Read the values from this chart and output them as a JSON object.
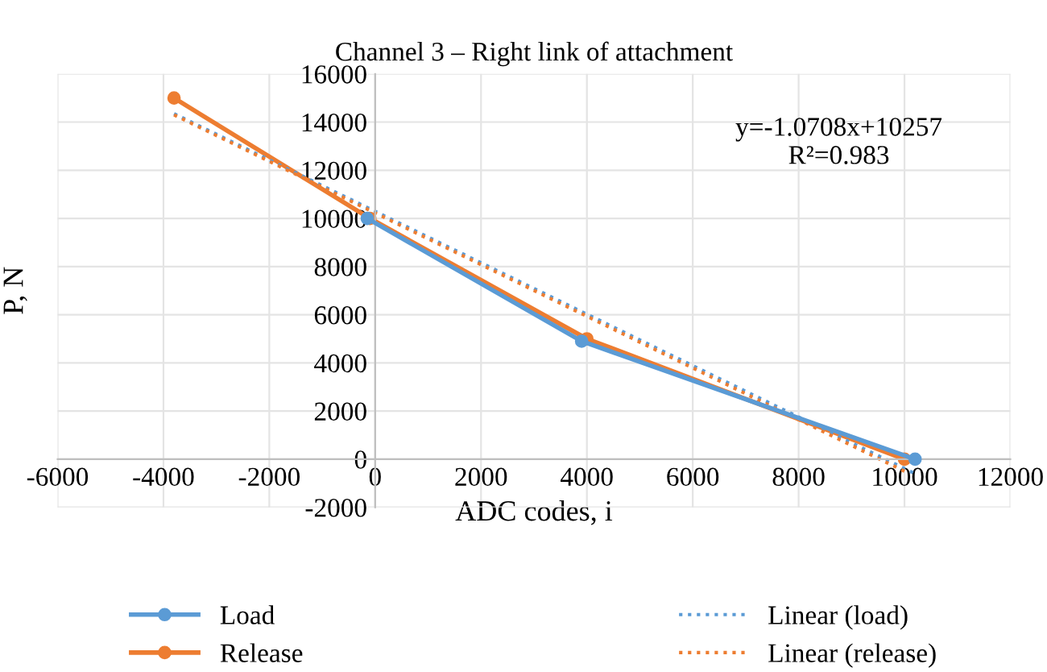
{
  "chart_data": {
    "type": "line",
    "title": "Channel 3 – Right link of attachment",
    "xlabel": "ADC codes, i",
    "ylabel": "P, N",
    "series": [
      {
        "name": "Load",
        "color": "#5b9bd5",
        "x": [
          -150,
          3900,
          10200
        ],
        "values": [
          10000,
          4900,
          0
        ],
        "marker": "circle",
        "line_style": "solid"
      },
      {
        "name": "Release",
        "color": "#ed7d31",
        "x": [
          -3800,
          -100,
          4000,
          10000
        ],
        "values": [
          15000,
          10000,
          5000,
          0
        ],
        "marker": "circle",
        "line_style": "solid"
      },
      {
        "name": "Linear (load)",
        "color": "#5b9bd5",
        "x": [
          -3800,
          10200
        ],
        "values": [
          14350,
          -600
        ],
        "marker": "none",
        "line_style": "dotted"
      },
      {
        "name": "Linear (release)",
        "color": "#ed7d31",
        "x": [
          -3800,
          10000
        ],
        "values": [
          14300,
          -500
        ],
        "marker": "none",
        "line_style": "dotted"
      }
    ],
    "xlim": [
      -6000,
      12000
    ],
    "xticks": [
      -6000,
      -4000,
      -2000,
      0,
      2000,
      4000,
      6000,
      8000,
      10000,
      12000
    ],
    "ylim": [
      -2000,
      16000
    ],
    "yticks": [
      -2000,
      0,
      2000,
      4000,
      6000,
      8000,
      10000,
      12000,
      14000,
      16000
    ],
    "annotations": [
      "y=-1.0708x+10257\nR²=0.983"
    ],
    "grid": true,
    "legend": "bottom"
  }
}
